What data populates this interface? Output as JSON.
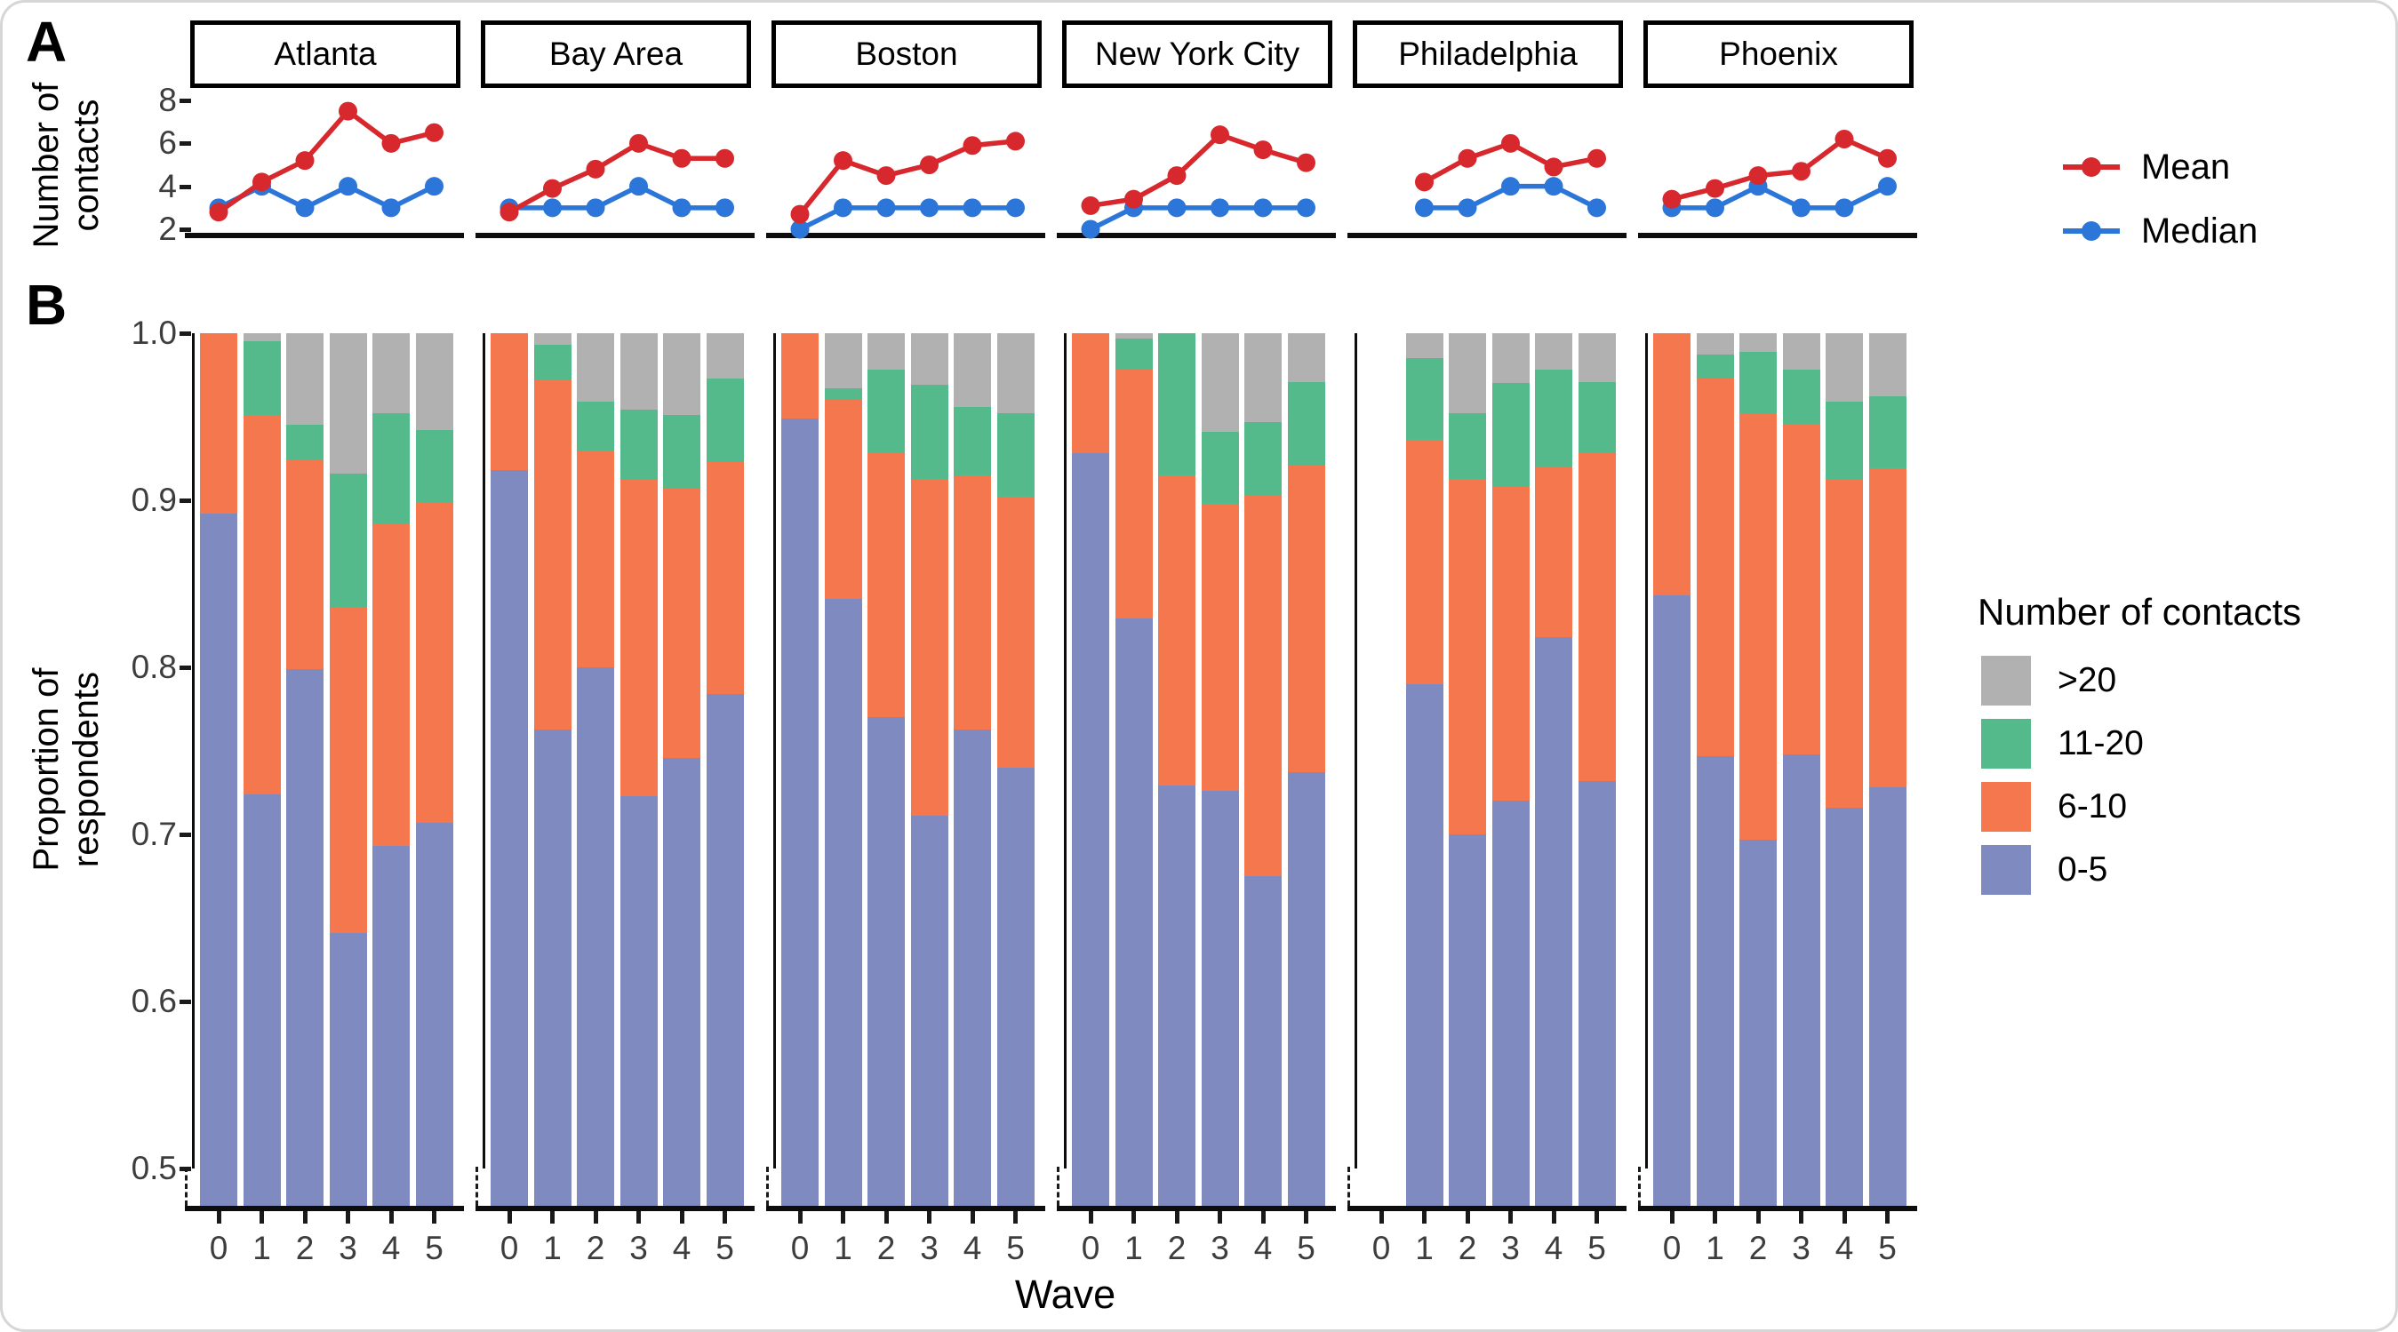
{
  "labels": {
    "a": "A",
    "b": "B"
  },
  "style_colors": {
    "frame_border": "#d6d6d6",
    "axis_text": "#3d3d3d",
    "axis_line": "#0d0d0d",
    "background": "#ffffff"
  },
  "chart_data": [
    {
      "panel": "A",
      "type": "line",
      "ylabel_lines": [
        "Number of",
        "contacts"
      ],
      "yticks": [
        "8",
        "6",
        "4",
        "2"
      ],
      "ylim": [
        1.7,
        8.4
      ],
      "x": [
        "0",
        "1",
        "2",
        "3",
        "4",
        "5"
      ],
      "grid": false,
      "legend_position": "right",
      "legend": [
        {
          "name": "Mean",
          "color": "#d7282e"
        },
        {
          "name": "Median",
          "color": "#2b76d8"
        }
      ],
      "facets": [
        {
          "city": "Atlanta",
          "series": {
            "Mean": [
              2.8,
              4.2,
              5.2,
              7.5,
              6.0,
              6.5
            ],
            "Median": [
              3,
              4,
              3,
              4,
              3,
              4
            ]
          }
        },
        {
          "city": "Bay Area",
          "series": {
            "Mean": [
              2.8,
              3.9,
              4.8,
              6.0,
              5.3,
              5.3
            ],
            "Median": [
              3,
              3,
              3,
              4,
              3,
              3
            ]
          }
        },
        {
          "city": "Boston",
          "series": {
            "Mean": [
              2.7,
              5.2,
              4.5,
              5.0,
              5.9,
              6.1
            ],
            "Median": [
              2,
              3,
              3,
              3,
              3,
              3
            ]
          }
        },
        {
          "city": "New York City",
          "series": {
            "Mean": [
              3.1,
              3.4,
              4.5,
              6.4,
              5.7,
              5.1
            ],
            "Median": [
              2,
              3,
              3,
              3,
              3,
              3
            ]
          }
        },
        {
          "city": "Philadelphia",
          "series": {
            "Mean": [
              null,
              4.2,
              5.3,
              6.0,
              4.9,
              5.3
            ],
            "Median": [
              null,
              3,
              3,
              4,
              4,
              3
            ]
          }
        },
        {
          "city": "Phoenix",
          "series": {
            "Mean": [
              3.4,
              3.9,
              4.5,
              4.7,
              6.2,
              5.3
            ],
            "Median": [
              3,
              3,
              4,
              3,
              3,
              4
            ]
          }
        }
      ]
    },
    {
      "panel": "B",
      "type": "bar",
      "stacked": true,
      "ylabel_lines": [
        "Proportion of",
        "respondents"
      ],
      "xlabel": "Wave",
      "yticks": [
        "1.0",
        "0.9",
        "0.8",
        "0.7",
        "0.6",
        "0.5"
      ],
      "ylim": [
        0.478,
        1.0
      ],
      "categories": [
        "0",
        "1",
        "2",
        "3",
        "4",
        "5"
      ],
      "legend_title": "Number of contacts",
      "stack_order_bottom_to_top": [
        "0-5",
        "6-10",
        "11-20",
        ">20"
      ],
      "legend": [
        {
          "name": ">20",
          "color": "#b1b1b1"
        },
        {
          "name": "11-20",
          "color": "#54b98b"
        },
        {
          "name": "6-10",
          "color": "#f5774e"
        },
        {
          "name": "0-5",
          "color": "#7e8ac0"
        }
      ],
      "facets": [
        {
          "city": "Atlanta",
          "cum_0_5": [
            0.892,
            0.724,
            0.799,
            0.641,
            0.693,
            0.707
          ],
          "cum_6_10": [
            1.0,
            0.951,
            0.924,
            0.836,
            0.886,
            0.899
          ],
          "cum_11_20": [
            1.0,
            0.995,
            0.945,
            0.916,
            0.952,
            0.942
          ]
        },
        {
          "city": "Bay Area",
          "cum_0_5": [
            0.918,
            0.763,
            0.8,
            0.723,
            0.746,
            0.784
          ],
          "cum_6_10": [
            1.0,
            0.972,
            0.93,
            0.912,
            0.907,
            0.923
          ],
          "cum_11_20": [
            1.0,
            0.993,
            0.959,
            0.954,
            0.951,
            0.973
          ]
        },
        {
          "city": "Boston",
          "cum_0_5": [
            0.949,
            0.841,
            0.77,
            0.711,
            0.763,
            0.74
          ],
          "cum_6_10": [
            1.0,
            0.96,
            0.928,
            0.913,
            0.915,
            0.902
          ],
          "cum_11_20": [
            1.0,
            0.967,
            0.978,
            0.969,
            0.956,
            0.952
          ]
        },
        {
          "city": "New York City",
          "cum_0_5": [
            0.928,
            0.829,
            0.729,
            0.726,
            0.675,
            0.737
          ],
          "cum_6_10": [
            1.0,
            0.978,
            0.915,
            0.898,
            0.903,
            0.921
          ],
          "cum_11_20": [
            1.0,
            0.997,
            1.0,
            0.941,
            0.947,
            0.971
          ]
        },
        {
          "city": "Philadelphia",
          "cum_0_5": [
            null,
            0.79,
            0.7,
            0.72,
            0.818,
            0.732
          ],
          "cum_6_10": [
            null,
            0.936,
            0.913,
            0.908,
            0.92,
            0.928
          ],
          "cum_11_20": [
            null,
            0.985,
            0.952,
            0.97,
            0.978,
            0.971
          ]
        },
        {
          "city": "Phoenix",
          "cum_0_5": [
            0.843,
            0.747,
            0.697,
            0.748,
            0.716,
            0.728
          ],
          "cum_6_10": [
            1.0,
            0.973,
            0.952,
            0.945,
            0.912,
            0.919
          ],
          "cum_11_20": [
            1.0,
            0.987,
            0.989,
            0.978,
            0.959,
            0.962
          ]
        }
      ]
    }
  ]
}
